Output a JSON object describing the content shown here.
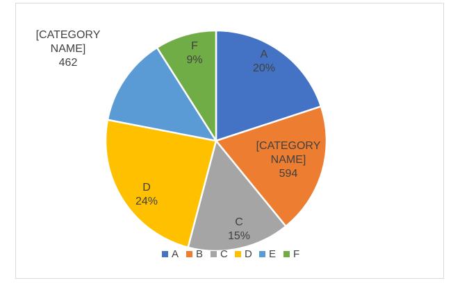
{
  "chart_data": {
    "type": "pie",
    "title": "",
    "slices": [
      {
        "name": "A",
        "value": 20,
        "color": "#4472C4",
        "label_lines": [
          "A",
          "20%"
        ]
      },
      {
        "name": "B",
        "value": 19.2,
        "color": "#ED7D31",
        "label_lines": [
          "[CATEGORY",
          "NAME]",
          "594"
        ]
      },
      {
        "name": "C",
        "value": 15,
        "color": "#A5A5A5",
        "label_lines": [
          "C",
          "15%"
        ]
      },
      {
        "name": "D",
        "value": 24,
        "color": "#FFC000",
        "label_lines": [
          "D",
          "24%"
        ]
      },
      {
        "name": "E",
        "value": 13,
        "color": "#5B9BD5",
        "label_lines": [
          "[CATEGORY",
          "NAME]",
          "462"
        ]
      },
      {
        "name": "F",
        "value": 9,
        "color": "#70AD47",
        "label_lines": [
          "F",
          "9%"
        ]
      }
    ],
    "legend": {
      "position": "bottom",
      "entries": [
        "A",
        "B",
        "C",
        "D",
        "E",
        "F"
      ]
    },
    "label_colors": {
      "text": "#404040"
    }
  }
}
